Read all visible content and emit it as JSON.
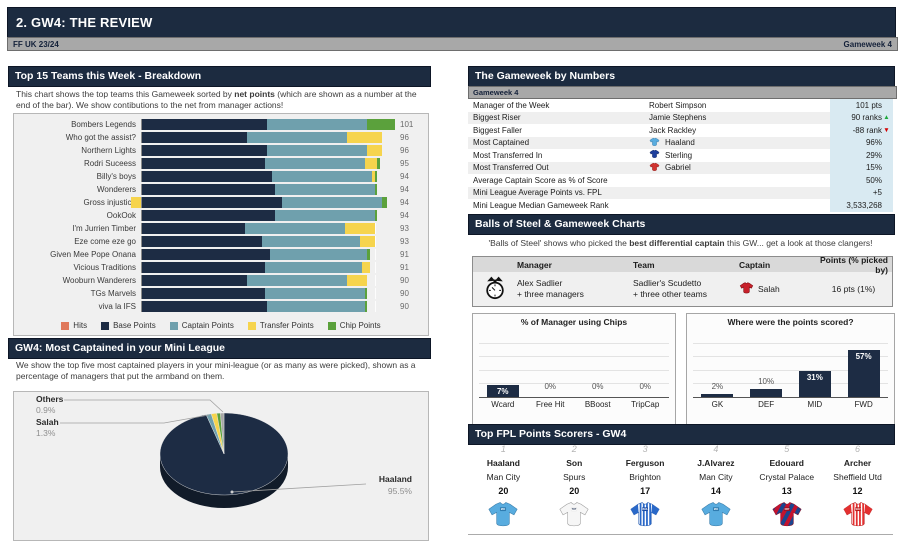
{
  "header": {
    "title": "2. GW4: THE REVIEW",
    "league": "FF UK 23/24",
    "gameweek": "Gameweek 4"
  },
  "breakdown_panel": {
    "title": "Top 15 Teams this Week - Breakdown",
    "description_parts": [
      "This chart shows the top teams this Gameweek sorted by ",
      "net points",
      " (which are shown as a number at the end of the bar). We show contibutions to the net from manager actions!"
    ]
  },
  "captained_panel": {
    "title": "GW4: Most Captained in your Mini League",
    "description": "We show the top five most captained players in your mini-league (or as many as were picked), shown as a percentage of managers that put the armband on them."
  },
  "numbers_panel": {
    "title": "The Gameweek by Numbers",
    "subtitle": "Gameweek 4",
    "rows": [
      {
        "label": "Manager of the Week",
        "entity": "Robert Simpson",
        "value": "101 pts"
      },
      {
        "label": "Biggest Riser",
        "entity": "Jamie Stephens",
        "value": "90 ranks",
        "arrow": "up"
      },
      {
        "label": "Biggest Faller",
        "entity": "Jack Rackley",
        "value": "-88 rank",
        "arrow": "down"
      },
      {
        "label": "Most Captained",
        "entity": "Haaland",
        "shirt": "mancity",
        "value": "96%"
      },
      {
        "label": "Most Transferred In",
        "entity": "Sterling",
        "shirt": "chelsea",
        "value": "29%"
      },
      {
        "label": "Most Transferred Out",
        "entity": "Gabriel",
        "shirt": "arsenal",
        "value": "15%"
      },
      {
        "label": "Average Captain Score as % of Score",
        "entity": "",
        "value": "50%"
      },
      {
        "label": "Mini League Average Points vs. FPL",
        "entity": "",
        "value": "+5"
      },
      {
        "label": "Mini League Median Gameweek Rank",
        "entity": "",
        "value": "3,533,268"
      }
    ]
  },
  "balls_panel": {
    "title": "Balls of Steel & Gameweek Charts",
    "description_parts": [
      "'Balls of Steel' shows who picked the ",
      "best differential captain",
      " this GW... get a look at those clangers!"
    ],
    "table": {
      "headers": [
        "Manager",
        "Team",
        "Captain",
        "Points (% picked by)"
      ],
      "row": {
        "manager_line1": "Alex Sadlier",
        "manager_line2": "+ three managers",
        "team_line1": "Sadlier's Scudetto",
        "team_line2": "+ three other teams",
        "captain": "Salah",
        "captain_shirt": "liverpool",
        "points": "16 pts (1%)"
      }
    }
  },
  "scorers_panel": {
    "title": "Top FPL Points Scorers - GW4",
    "players": [
      {
        "rank": "1",
        "name": "Haaland",
        "team": "Man City",
        "points": "20",
        "shirt": "mancity"
      },
      {
        "rank": "2",
        "name": "Son",
        "team": "Spurs",
        "points": "20",
        "shirt": "spurs"
      },
      {
        "rank": "3",
        "name": "Ferguson",
        "team": "Brighton",
        "points": "17",
        "shirt": "brighton"
      },
      {
        "rank": "4",
        "name": "J.Alvarez",
        "team": "Man City",
        "points": "14",
        "shirt": "mancity"
      },
      {
        "rank": "5",
        "name": "Edouard",
        "team": "Crystal Palace",
        "points": "13",
        "shirt": "palace"
      },
      {
        "rank": "6",
        "name": "Archer",
        "team": "Sheffield Utd",
        "points": "12",
        "shirt": "sheffield"
      }
    ]
  },
  "chart_data": [
    {
      "id": "top15-breakdown",
      "type": "bar",
      "orientation": "horizontal",
      "stacked": true,
      "title": "Top 15 Teams this Week - Breakdown",
      "categories": [
        "Bombers Legends",
        "Who got the assist?",
        "Northern Lights",
        "Rodri Suceess",
        "Billy's boys",
        "Wonderers",
        "Gross injustice",
        "OokOok",
        "I'm Jurrien Timber",
        "Eze come eze go",
        "Given Mee Pope Onana",
        "Vicious Traditions",
        "Wooburn Wanderers",
        "TGs Marvels",
        "viva la IFS"
      ],
      "series": [
        {
          "name": "Hits",
          "color": "#e0795c",
          "values": [
            0,
            0,
            0,
            0,
            0,
            0,
            0,
            0,
            0,
            0,
            0,
            0,
            0,
            0,
            0
          ]
        },
        {
          "name": "Base Points",
          "color": "#1d2c44",
          "values": [
            50,
            42,
            50,
            49,
            52,
            53,
            56,
            53,
            41,
            48,
            51,
            49,
            42,
            49,
            50
          ]
        },
        {
          "name": "Captain Points",
          "color": "#6fa0ad",
          "values": [
            40,
            40,
            40,
            40,
            40,
            40,
            40,
            40,
            40,
            39,
            39,
            39,
            40,
            40,
            39
          ]
        },
        {
          "name": "Transfer Points",
          "color": "#f6d44d",
          "values": [
            0,
            14,
            6,
            5,
            1,
            0,
            -4,
            0,
            12,
            6,
            0,
            3,
            8,
            0,
            0
          ]
        },
        {
          "name": "Chip Points",
          "color": "#5ba13c",
          "values": [
            11,
            0,
            0,
            1,
            1,
            1,
            2,
            1,
            0,
            0,
            1,
            0,
            0,
            1,
            1
          ]
        }
      ],
      "net_points": [
        101,
        96,
        96,
        95,
        94,
        94,
        94,
        94,
        93,
        93,
        91,
        91,
        90,
        90,
        90
      ],
      "legend_position": "bottom",
      "xlim": [
        0,
        105
      ]
    },
    {
      "id": "most-captained",
      "type": "pie",
      "title": "GW4: Most Captained in your Mini League",
      "slices": [
        {
          "name": "Haaland",
          "pct": 95.5,
          "pct_label": "95.5%",
          "color": "#1d2c44",
          "labeled": true
        },
        {
          "name": "Salah",
          "pct": 1.3,
          "pct_label": "1.3%",
          "color": "#6fa0ad",
          "labeled": true
        },
        {
          "name": "",
          "pct": 1.4,
          "pct_label": "",
          "color": "#f6d44d",
          "labeled": false
        },
        {
          "name": "",
          "pct": 0.9,
          "pct_label": "",
          "color": "#5ba13c",
          "labeled": false
        },
        {
          "name": "Others",
          "pct": 0.9,
          "pct_label": "0.9%",
          "color": "#a6a6a6",
          "labeled": true
        }
      ]
    },
    {
      "id": "chips-usage",
      "type": "bar",
      "title": "% of Manager using Chips",
      "categories": [
        "Wcard",
        "Free Hit",
        "BBoost",
        "TripCap"
      ],
      "values": [
        7,
        0,
        0,
        0
      ],
      "value_labels": [
        "7%",
        "0%",
        "0%",
        "0%"
      ],
      "ylim": [
        0,
        36
      ],
      "bar_color": "#1d2c44",
      "grid": true
    },
    {
      "id": "points-by-position",
      "type": "bar",
      "title": "Where were the points scored?",
      "categories": [
        "GK",
        "DEF",
        "MID",
        "FWD"
      ],
      "values": [
        2,
        10,
        31,
        57
      ],
      "value_labels": [
        "2%",
        "10%",
        "31%",
        "57%"
      ],
      "ylim": [
        0,
        77
      ],
      "bar_color": "#1d2c44",
      "grid": true
    }
  ]
}
